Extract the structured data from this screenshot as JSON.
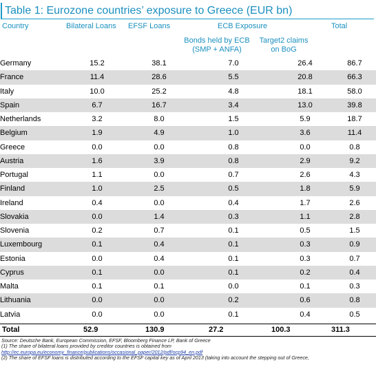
{
  "title": "Table 1: Eurozone countries’ exposure to Greece (EUR bn)",
  "columns": {
    "country": "Country",
    "bilateral": "Bilateral Loans",
    "efsf": "EFSF Loans",
    "ecb_group": "ECB Exposure",
    "bonds_line1": "Bonds held by ECB",
    "bonds_line2": "(SMP + ANFA)",
    "target2_line1": "Target2 claims",
    "target2_line2": "on BoG",
    "total": "Total"
  },
  "rows": [
    {
      "country": "Germany",
      "bilateral": "15.2",
      "efsf": "38.1",
      "bonds": "7.0",
      "target2": "26.4",
      "total": "86.7"
    },
    {
      "country": "France",
      "bilateral": "11.4",
      "efsf": "28.6",
      "bonds": "5.5",
      "target2": "20.8",
      "total": "66.3"
    },
    {
      "country": "Italy",
      "bilateral": "10.0",
      "efsf": "25.2",
      "bonds": "4.8",
      "target2": "18.1",
      "total": "58.0"
    },
    {
      "country": "Spain",
      "bilateral": "6.7",
      "efsf": "16.7",
      "bonds": "3.4",
      "target2": "13.0",
      "total": "39.8"
    },
    {
      "country": "Netherlands",
      "bilateral": "3.2",
      "efsf": "8.0",
      "bonds": "1.5",
      "target2": "5.9",
      "total": "18.7"
    },
    {
      "country": "Belgium",
      "bilateral": "1.9",
      "efsf": "4.9",
      "bonds": "1.0",
      "target2": "3.6",
      "total": "11.4"
    },
    {
      "country": "Greece",
      "bilateral": "0.0",
      "efsf": "0.0",
      "bonds": "0.8",
      "target2": "0.0",
      "total": "0.8"
    },
    {
      "country": "Austria",
      "bilateral": "1.6",
      "efsf": "3.9",
      "bonds": "0.8",
      "target2": "2.9",
      "total": "9.2"
    },
    {
      "country": "Portugal",
      "bilateral": "1.1",
      "efsf": "0.0",
      "bonds": "0.7",
      "target2": "2.6",
      "total": "4.3"
    },
    {
      "country": "Finland",
      "bilateral": "1.0",
      "efsf": "2.5",
      "bonds": "0.5",
      "target2": "1.8",
      "total": "5.9"
    },
    {
      "country": "Ireland",
      "bilateral": "0.4",
      "efsf": "0.0",
      "bonds": "0.4",
      "target2": "1.7",
      "total": "2.6"
    },
    {
      "country": "Slovakia",
      "bilateral": "0.0",
      "efsf": "1.4",
      "bonds": "0.3",
      "target2": "1.1",
      "total": "2.8"
    },
    {
      "country": "Slovenia",
      "bilateral": "0.2",
      "efsf": "0.7",
      "bonds": "0.1",
      "target2": "0.5",
      "total": "1.5"
    },
    {
      "country": "Luxembourg",
      "bilateral": "0.1",
      "efsf": "0.4",
      "bonds": "0.1",
      "target2": "0.3",
      "total": "0.9"
    },
    {
      "country": "Estonia",
      "bilateral": "0.0",
      "efsf": "0.4",
      "bonds": "0.1",
      "target2": "0.3",
      "total": "0.7"
    },
    {
      "country": "Cyprus",
      "bilateral": "0.1",
      "efsf": "0.0",
      "bonds": "0.1",
      "target2": "0.2",
      "total": "0.4"
    },
    {
      "country": "Malta",
      "bilateral": "0.1",
      "efsf": "0.1",
      "bonds": "0.0",
      "target2": "0.1",
      "total": "0.3"
    },
    {
      "country": "Lithuania",
      "bilateral": "0.0",
      "efsf": "0.0",
      "bonds": "0.2",
      "target2": "0.6",
      "total": "0.8"
    },
    {
      "country": "Latvia",
      "bilateral": "0.0",
      "efsf": "0.0",
      "bonds": "0.1",
      "target2": "0.4",
      "total": "0.5"
    }
  ],
  "totals": {
    "label": "Total",
    "bilateral": "52.9",
    "efsf": "130.9",
    "bonds": "27.2",
    "target2": "100.3",
    "total": "311.3"
  },
  "notes": {
    "source": "Source: Deutsche Bank, European Commission, EFSF, Bloomberg Finance LP, Bank of Greece",
    "note1": "(1) The share of bilateral loans provided by creditor countries is obtained from",
    "note1_link": "http://ec.europa.eu/economy_finance/publications/occasional_paper/2012/pdf/ocp94_en.pdf",
    "note2": "(2) The share of EFSF loans is distributed according to the EFSF capital key as of April 2013 (taking into account the stepping out of Greece,"
  }
}
